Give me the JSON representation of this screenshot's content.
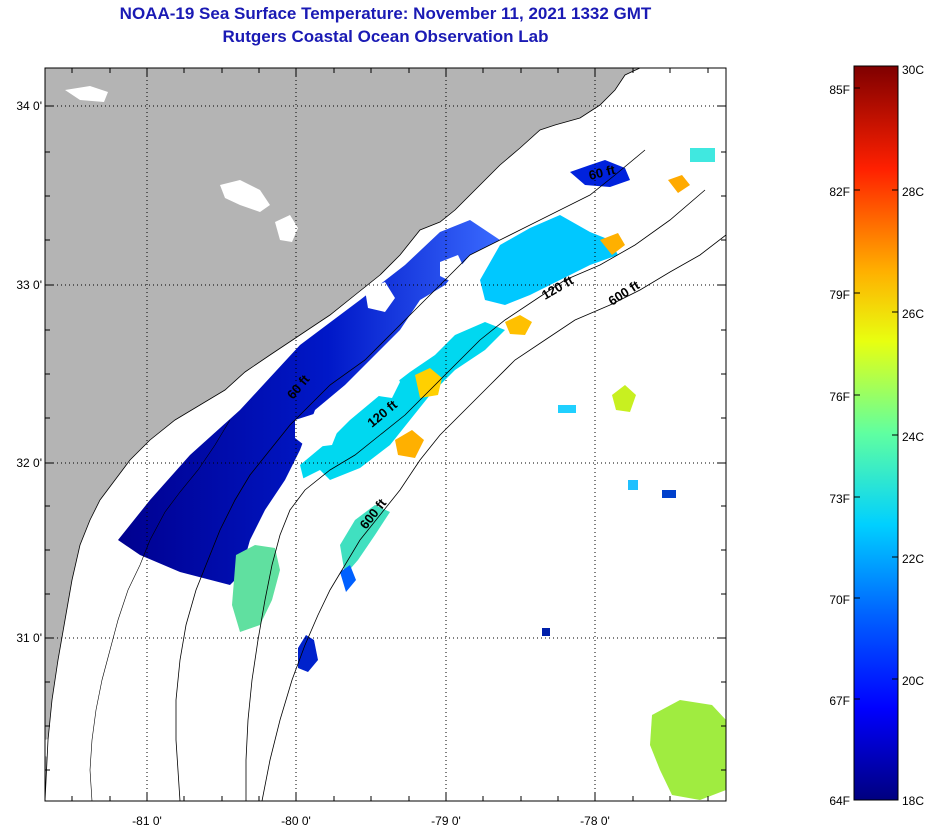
{
  "title": {
    "line1": "NOAA-19 Sea Surface Temperature:  November 11, 2021 1332 GMT",
    "line2": "Rutgers Coastal Ocean Observation Lab"
  },
  "axes": {
    "lat_labels": [
      "34 0'",
      "33 0'",
      "32 0'",
      "31 0'"
    ],
    "lon_labels": [
      "-81 0'",
      "-80 0'",
      "-79 0'",
      "-78 0'"
    ]
  },
  "contour_labels": {
    "c60_north": "60 ft",
    "c120_north": "120 ft",
    "c600_north": "600 ft",
    "c60_south": "60 ft",
    "c120_south": "120 ft",
    "c600_south": "600 ft"
  },
  "colorbar": {
    "fahrenheit_labels": [
      "85F",
      "82F",
      "79F",
      "76F",
      "73F",
      "70F",
      "67F",
      "64F"
    ],
    "celsius_labels": [
      "30C",
      "28C",
      "26C",
      "24C",
      "22C",
      "20C",
      "18C"
    ],
    "range_c": [
      18,
      30
    ],
    "colors": [
      "#00007f",
      "#0000ff",
      "#007fff",
      "#00ffff",
      "#7fff7f",
      "#ffff00",
      "#ff7f00",
      "#ff0000",
      "#7f0000"
    ]
  },
  "colors": {
    "land": "#b4b4b4",
    "ocean_nodata": "#ffffff",
    "title": "#1a1ab4"
  }
}
